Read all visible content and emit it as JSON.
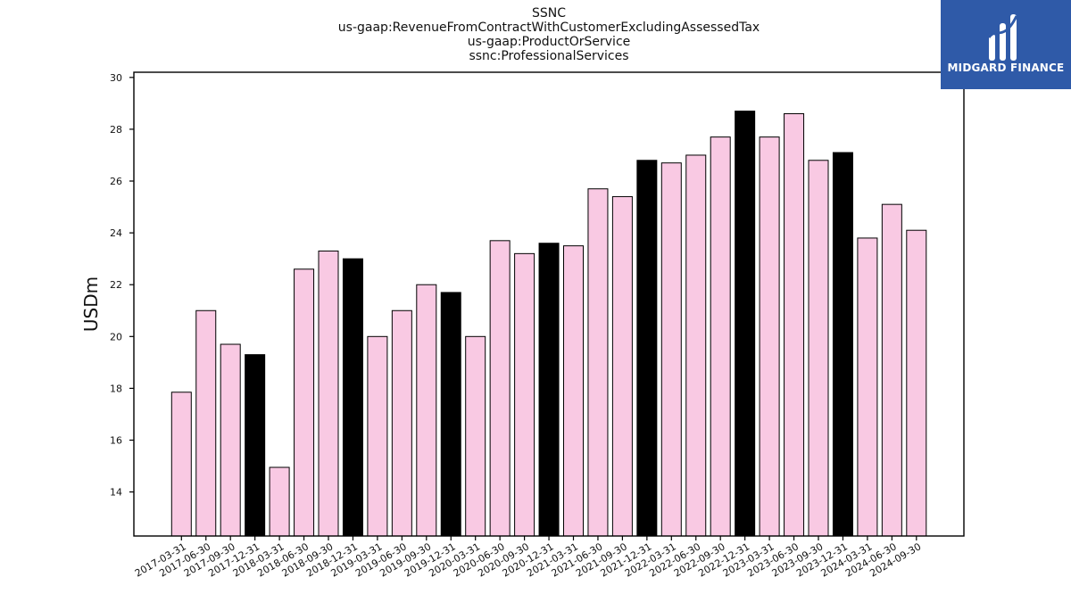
{
  "header": {
    "title_lines": [
      "SSNC",
      "us-gaap:RevenueFromContractWithCustomerExcludingAssessedTax",
      "us-gaap:ProductOrService",
      "ssnc:ProfessionalServices"
    ]
  },
  "logo": {
    "text": "MIDGARD FINANCE",
    "background": "#2f5aa8"
  },
  "colors": {
    "normal_bar": "#f9c9e3",
    "highlight_bar": "#000000",
    "bar_edge": "#000000",
    "axes": "#000000"
  },
  "chart_data": {
    "type": "bar",
    "title": "SSNC",
    "xlabel": "",
    "ylabel": "USDm",
    "ylim": [
      12.3,
      30.2
    ],
    "yticks": [
      14,
      16,
      18,
      20,
      22,
      24,
      26,
      28,
      30
    ],
    "grid": false,
    "legend": "none",
    "categories": [
      "2017-03-31",
      "2017-06-30",
      "2017-09-30",
      "2017-12-31",
      "2018-03-31",
      "2018-06-30",
      "2018-09-30",
      "2018-12-31",
      "2019-03-31",
      "2019-06-30",
      "2019-09-30",
      "2019-12-31",
      "2020-03-31",
      "2020-06-30",
      "2020-09-30",
      "2020-12-31",
      "2021-03-31",
      "2021-06-30",
      "2021-09-30",
      "2021-12-31",
      "2022-03-31",
      "2022-06-30",
      "2022-09-30",
      "2022-12-31",
      "2023-03-31",
      "2023-06-30",
      "2023-09-30",
      "2023-12-31",
      "2024-03-31",
      "2024-06-30",
      "2024-09-30"
    ],
    "values": [
      17.85,
      21.0,
      19.7,
      19.3,
      14.95,
      22.6,
      23.3,
      23.0,
      20.0,
      21.0,
      22.0,
      21.7,
      20.0,
      23.7,
      23.2,
      23.6,
      23.5,
      25.7,
      25.4,
      26.8,
      26.7,
      27.0,
      27.7,
      28.7,
      27.7,
      28.6,
      26.8,
      27.1,
      23.8,
      25.1,
      24.1
    ],
    "highlighted": [
      false,
      false,
      false,
      true,
      false,
      false,
      false,
      true,
      false,
      false,
      false,
      true,
      false,
      false,
      false,
      true,
      false,
      false,
      false,
      true,
      false,
      false,
      false,
      true,
      false,
      false,
      false,
      true,
      false,
      false,
      false
    ]
  }
}
